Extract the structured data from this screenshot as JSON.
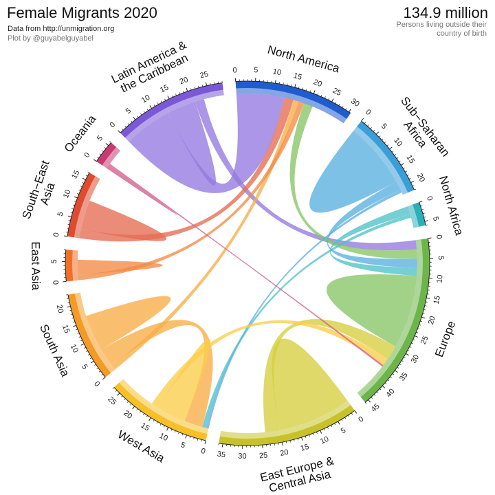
{
  "header": {
    "title": "Female Migrants 2020",
    "source": "Data from http://unmigration.org",
    "credit": "Plot by @guyabelguyabel",
    "total": "134.9 million",
    "total_sub": "Persons living outside their country of birth"
  },
  "chart_data": {
    "type": "chord",
    "units": "millions",
    "title": "Female Migrants 2020",
    "sectors": [
      {
        "name": "North America",
        "label_lines": [
          "North America"
        ],
        "total": 30.5,
        "ticks": [
          0,
          5,
          10,
          15,
          20,
          25,
          30
        ],
        "color": "#1f5ccf",
        "flow_color": "#5566e0"
      },
      {
        "name": "Sub-Saharan Africa",
        "label_lines": [
          "Sub−Saharan",
          "Africa"
        ],
        "total": 22,
        "ticks": [
          0,
          5,
          10,
          15,
          20
        ],
        "color": "#3a9fd8",
        "flow_color": "#5ab0e0"
      },
      {
        "name": "North Africa",
        "label_lines": [
          "North Africa"
        ],
        "total": 6,
        "ticks": [
          0,
          5
        ],
        "color": "#2ab0b9",
        "flow_color": "#4ec2c8"
      },
      {
        "name": "Europe",
        "label_lines": [
          "Europe"
        ],
        "total": 46,
        "ticks": [
          0,
          5,
          10,
          15,
          20,
          25,
          30,
          35,
          40,
          45
        ],
        "color": "#6cb548",
        "flow_color": "#86c566"
      },
      {
        "name": "East Europe & Central Asia",
        "label_lines": [
          "East Europe &",
          "Central Asia"
        ],
        "total": 36,
        "ticks": [
          0,
          5,
          10,
          15,
          20,
          25,
          30,
          35
        ],
        "color": "#c8c22a",
        "flow_color": "#d5ce3e"
      },
      {
        "name": "West Asia",
        "label_lines": [
          "West Asia"
        ],
        "total": 27,
        "ticks": [
          0,
          5,
          10,
          15,
          20,
          25
        ],
        "color": "#f8c028",
        "flow_color": "#fbcd4a"
      },
      {
        "name": "South Asia",
        "label_lines": [
          "South Asia"
        ],
        "total": 23,
        "ticks": [
          0,
          5,
          10,
          15,
          20
        ],
        "color": "#f59a24",
        "flow_color": "#f8ad45"
      },
      {
        "name": "East Asia",
        "label_lines": [
          "East Asia"
        ],
        "total": 8,
        "ticks": [
          0,
          5
        ],
        "color": "#f07026",
        "flow_color": "#f38a45"
      },
      {
        "name": "South-East Asia",
        "label_lines": [
          "South−East",
          "Asia"
        ],
        "total": 17,
        "ticks": [
          0,
          5,
          10,
          15
        ],
        "color": "#de4b2e",
        "flow_color": "#e66b52"
      },
      {
        "name": "Oceania",
        "label_lines": [
          "Oceania"
        ],
        "total": 6,
        "ticks": [
          0,
          5
        ],
        "color": "#c83a72",
        "flow_color": "#d25c8a"
      },
      {
        "name": "Latin America & the Caribbean",
        "label_lines": [
          "Latin America &",
          "the Caribbean"
        ],
        "total": 29,
        "ticks": [
          0,
          5,
          10,
          15,
          20,
          25
        ],
        "color": "#7a58d8",
        "flow_color": "#9478e0"
      }
    ],
    "flows": [
      {
        "from": "Latin America & the Caribbean",
        "to": "North America",
        "value": 13
      },
      {
        "from": "Latin America & the Caribbean",
        "to": "Latin America & the Caribbean",
        "value": 4
      },
      {
        "from": "Latin America & the Caribbean",
        "to": "Europe",
        "value": 2.5
      },
      {
        "from": "South-East Asia",
        "to": "North America",
        "value": 2.5
      },
      {
        "from": "South Asia",
        "to": "North America",
        "value": 1.5
      },
      {
        "from": "East Asia",
        "to": "North America",
        "value": 1.5
      },
      {
        "from": "Europe",
        "to": "North America",
        "value": 2.5
      },
      {
        "from": "Sub-Saharan Africa",
        "to": "Sub-Saharan Africa",
        "value": 9
      },
      {
        "from": "Sub-Saharan Africa",
        "to": "Europe",
        "value": 2.5
      },
      {
        "from": "Sub-Saharan Africa",
        "to": "West Asia",
        "value": 0.8
      },
      {
        "from": "North Africa",
        "to": "Europe",
        "value": 2.2
      },
      {
        "from": "North Africa",
        "to": "West Asia",
        "value": 1
      },
      {
        "from": "Europe",
        "to": "Europe",
        "value": 10
      },
      {
        "from": "East Europe & Central Asia",
        "to": "East Europe & Central Asia",
        "value": 10
      },
      {
        "from": "East Europe & Central Asia",
        "to": "Europe",
        "value": 4
      },
      {
        "from": "South Asia",
        "to": "West Asia",
        "value": 5
      },
      {
        "from": "South Asia",
        "to": "South Asia",
        "value": 5
      },
      {
        "from": "West Asia",
        "to": "West Asia",
        "value": 4
      },
      {
        "from": "West Asia",
        "to": "Europe",
        "value": 2
      },
      {
        "from": "South-East Asia",
        "to": "South-East Asia",
        "value": 4
      },
      {
        "from": "East Asia",
        "to": "East Asia",
        "value": 2
      },
      {
        "from": "Oceania",
        "to": "Oceania",
        "value": 0.5
      },
      {
        "from": "Oceania",
        "to": "Europe",
        "value": 0.5
      }
    ]
  }
}
